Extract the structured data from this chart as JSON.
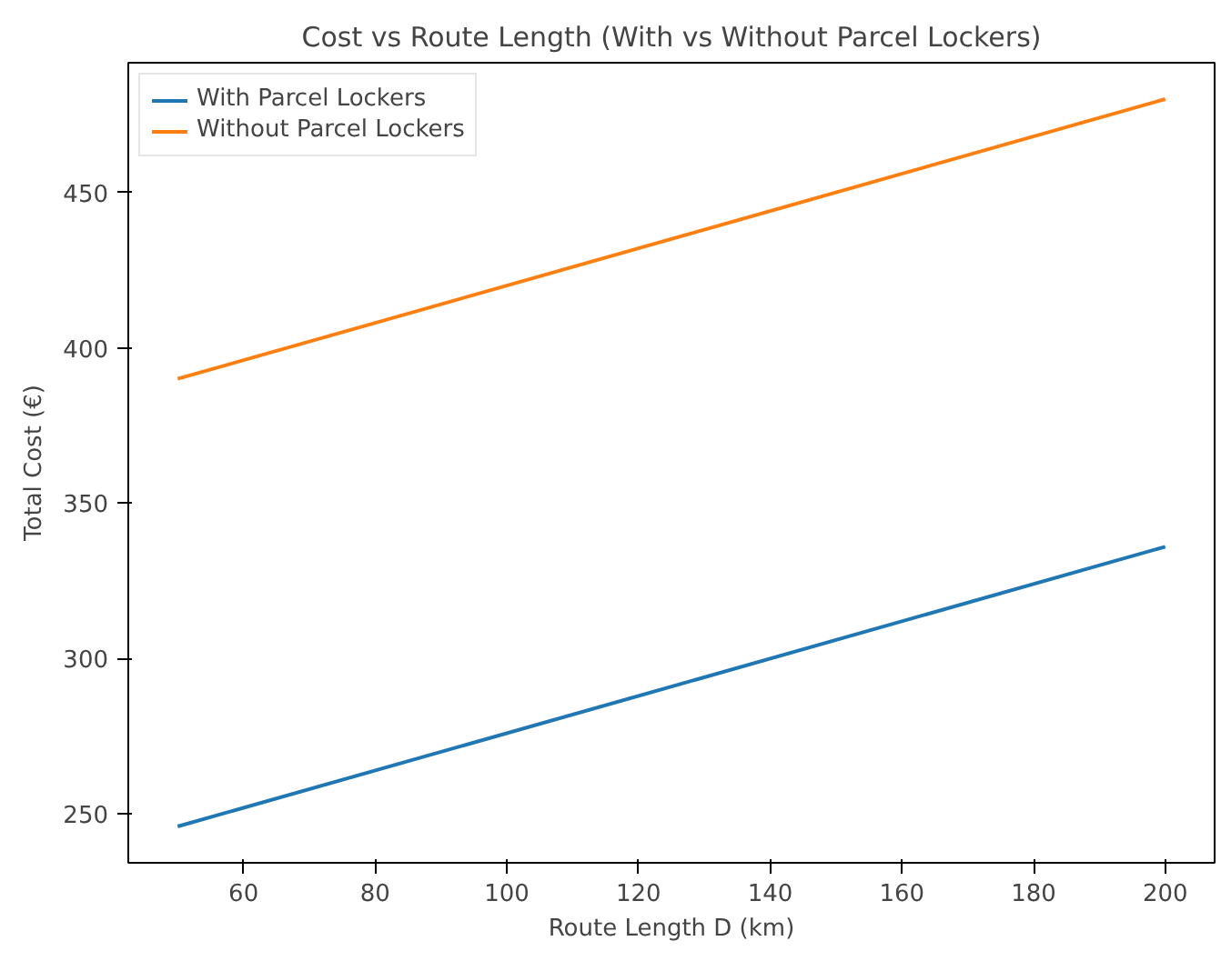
{
  "chart_data": {
    "type": "line",
    "title": "Cost vs Route Length (With vs Without Parcel Lockers)",
    "xlabel": "Route Length D (km)",
    "ylabel": "Total Cost (€)",
    "x": [
      50,
      200
    ],
    "series": [
      {
        "name": "With Parcel Lockers",
        "color": "#1f77b4",
        "values": [
          246,
          336
        ]
      },
      {
        "name": "Without Parcel Lockers",
        "color": "#ff7f0e",
        "values": [
          390,
          480
        ]
      }
    ],
    "xlim": [
      42.5,
      207.5
    ],
    "ylim": [
      234.3,
      491.7
    ],
    "xticks": [
      60,
      80,
      100,
      120,
      140,
      160,
      180,
      200
    ],
    "yticks": [
      250,
      300,
      350,
      400,
      450
    ],
    "legend": "top left",
    "grid": false,
    "marker": "none",
    "line_style": "solid"
  }
}
